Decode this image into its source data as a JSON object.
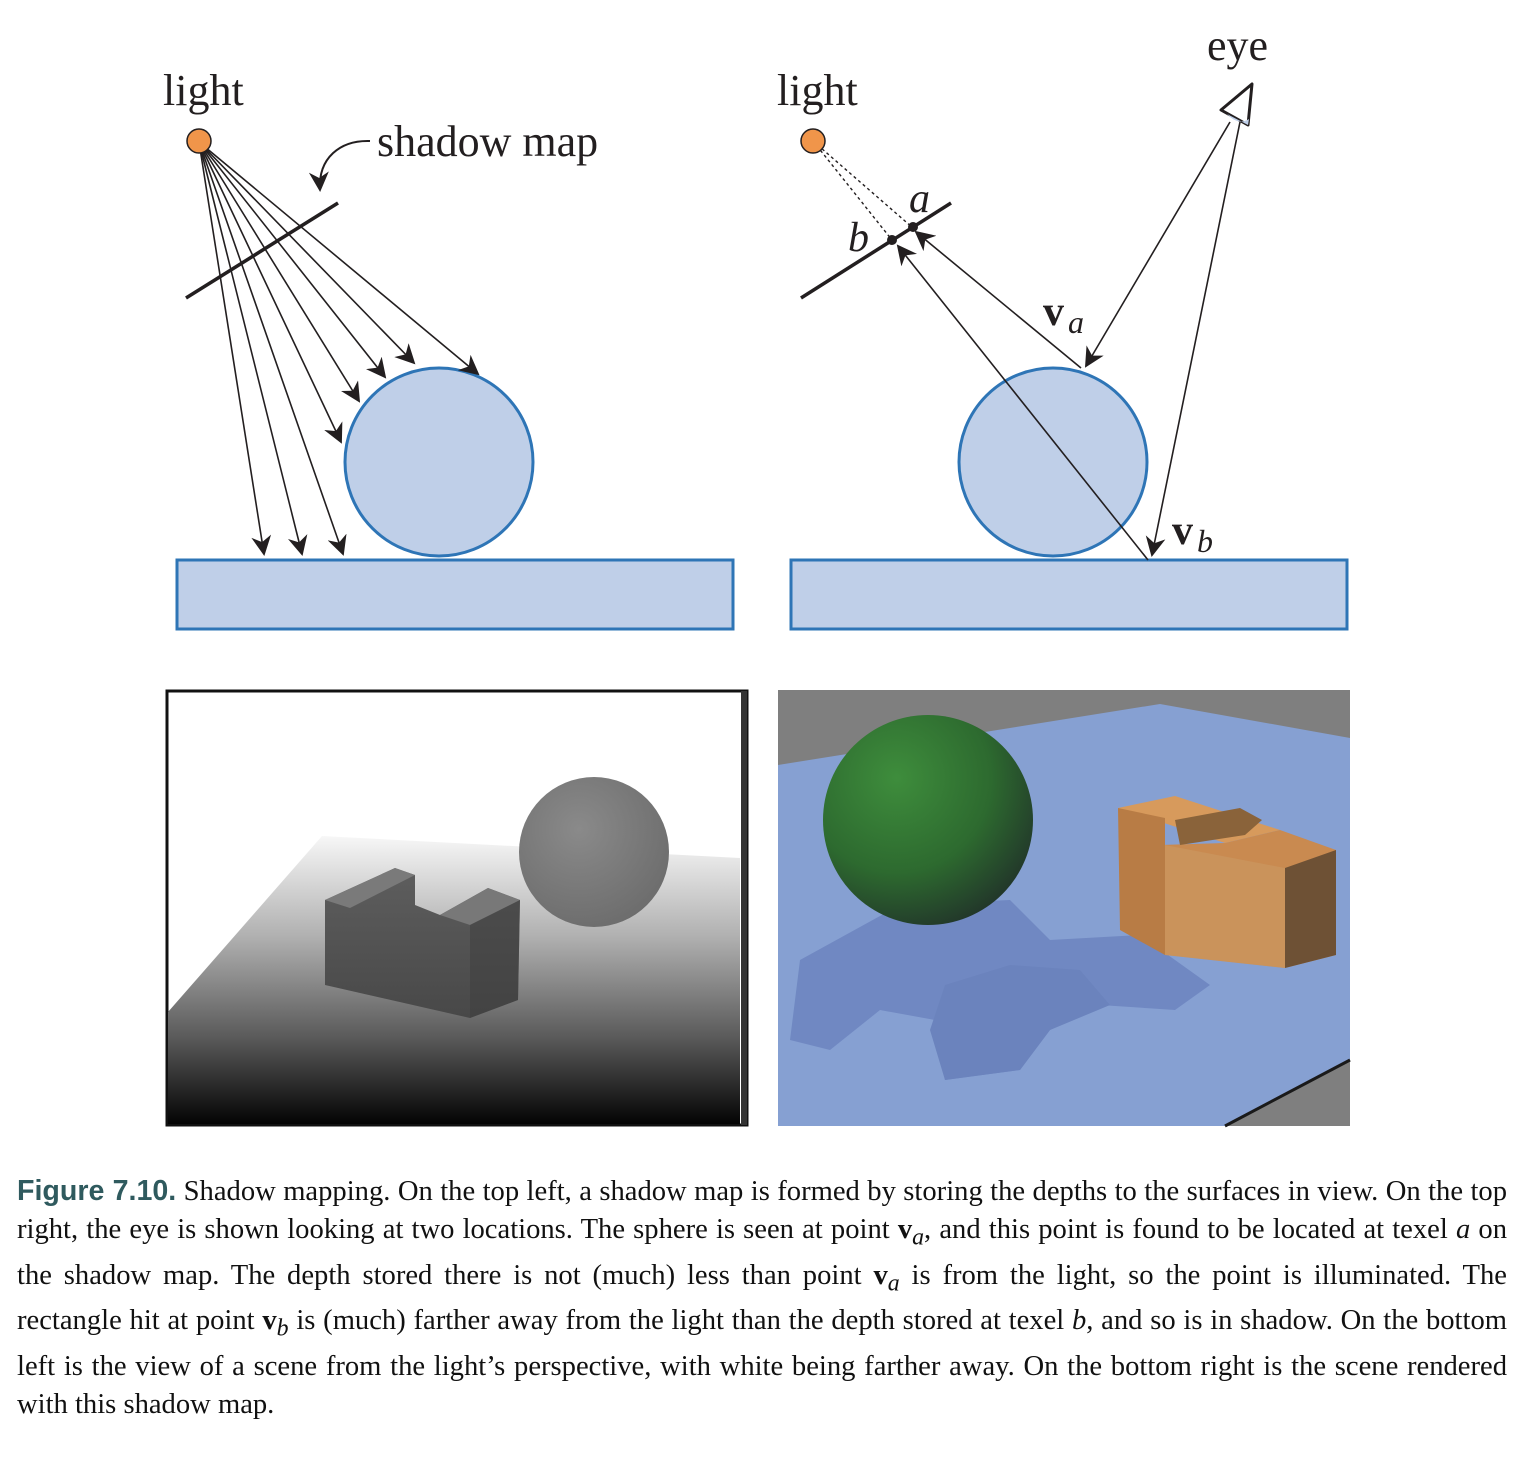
{
  "diagram_left": {
    "light_label": "light",
    "shadow_map_label": "shadow map"
  },
  "diagram_right": {
    "light_label": "light",
    "eye_label": "eye",
    "texel_a": "a",
    "texel_b": "b",
    "point_a_base": "v",
    "point_a_sub": "a",
    "point_b_base": "v",
    "point_b_sub": "b"
  },
  "colors": {
    "light": "#f0954a",
    "object_fill": "#bfcfe8",
    "object_stroke": "#2e75b6",
    "ray": "#231f20",
    "sphere_green": "#2f6e31",
    "box_orange": "#c98a50",
    "plane_blue": "#86a0d2"
  },
  "caption": {
    "label": "Figure 7.10.",
    "seg1": " Shadow mapping. On the top left, a shadow map is formed by storing the depths to the surfaces in view. On the top right, the eye is shown looking at two locations. The sphere is seen at point ",
    "va_base": "v",
    "va_sub": "a",
    "seg2": ", and this point is found to be located at texel ",
    "tex_a": "a",
    "seg3": " on the shadow map. The depth stored there is not (much) less than point ",
    "va2_base": "v",
    "va2_sub": "a",
    "seg4": " is from the light, so the point is illuminated. The rectangle hit at point ",
    "vb_base": "v",
    "vb_sub": "b",
    "seg5": " is (much) farther away from the light than the depth stored at texel ",
    "tex_b": "b",
    "seg6": ", and so is in shadow. On the bottom left is the view of a scene from the light’s perspective, with white being farther away. On the bottom right is the scene rendered with this shadow map."
  }
}
